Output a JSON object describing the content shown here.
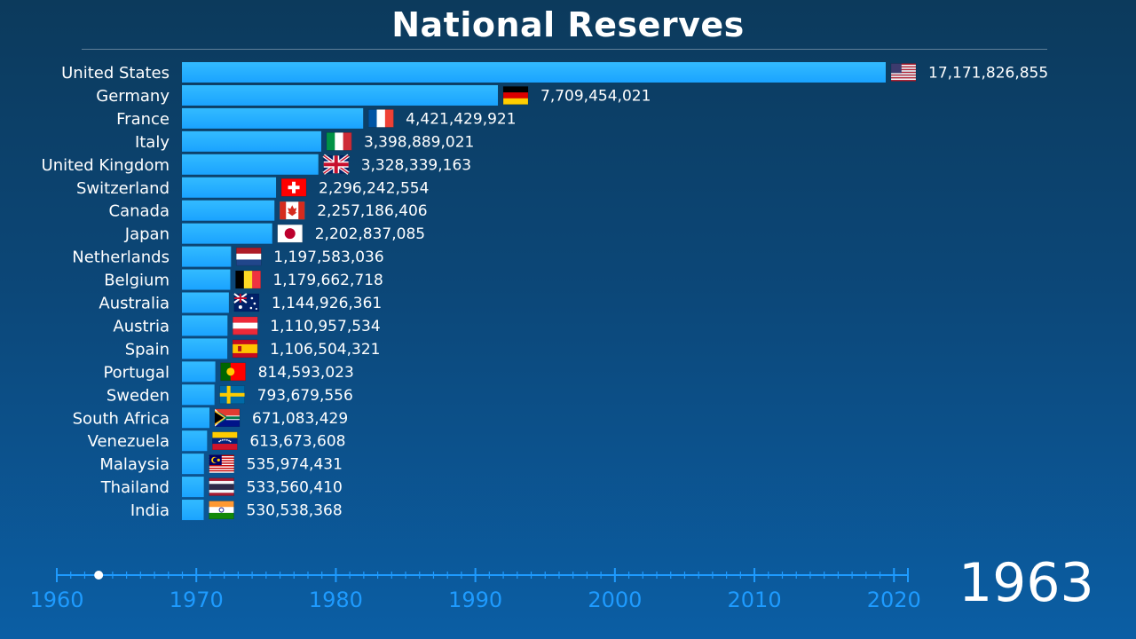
{
  "title": "National Reserves",
  "year": "1963",
  "colors": {
    "bar": "#1aa3ff",
    "bar_top": "#33bbff",
    "axis": "#1e9bff",
    "marker": "#ffffff"
  },
  "chart_data": {
    "type": "bar",
    "orientation": "horizontal",
    "title": "National Reserves",
    "xlim": [
      0,
      17171826855
    ],
    "categories": [
      "United States",
      "Germany",
      "France",
      "Italy",
      "United Kingdom",
      "Switzerland",
      "Canada",
      "Japan",
      "Netherlands",
      "Belgium",
      "Australia",
      "Austria",
      "Spain",
      "Portugal",
      "Sweden",
      "South Africa",
      "Venezuela",
      "Malaysia",
      "Thailand",
      "India"
    ],
    "values": [
      17171826855,
      7709454021,
      4421429921,
      3398889021,
      3328339163,
      2296242554,
      2257186406,
      2202837085,
      1197583036,
      1179662718,
      1144926361,
      1110957534,
      1106504321,
      814593023,
      793679556,
      671083429,
      613673608,
      535974431,
      533560410,
      530538368
    ],
    "value_labels": [
      "17,171,826,855",
      "7,709,454,021",
      "4,421,429,921",
      "3,398,889,021",
      "3,328,339,163",
      "2,296,242,554",
      "2,257,186,406",
      "2,202,837,085",
      "1,197,583,036",
      "1,179,662,718",
      "1,144,926,361",
      "1,110,957,534",
      "1,106,504,321",
      "814,593,023",
      "793,679,556",
      "671,083,429",
      "613,673,608",
      "535,974,431",
      "533,560,410",
      "530,538,368"
    ],
    "flags": [
      "us",
      "de",
      "fr",
      "it",
      "gb",
      "ch",
      "ca",
      "jp",
      "nl",
      "be",
      "au",
      "at",
      "es",
      "pt",
      "se",
      "za",
      "ve",
      "my",
      "th",
      "in"
    ]
  },
  "timeline": {
    "start": 1960,
    "end": 2021,
    "current": 1963,
    "labels": [
      "1960",
      "1970",
      "1980",
      "1990",
      "2000",
      "2010",
      "2020"
    ]
  }
}
